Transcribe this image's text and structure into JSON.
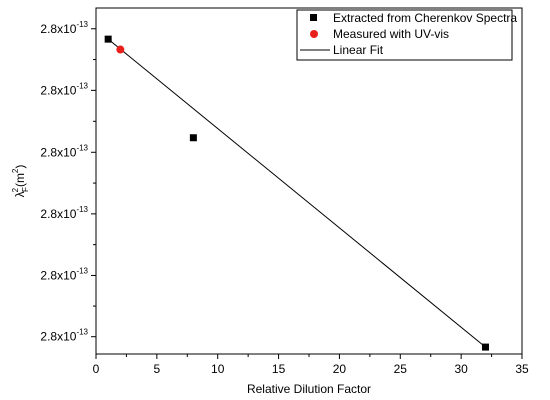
{
  "chart_data": {
    "type": "scatter",
    "xlabel": "Relative Dilution Factor",
    "ylabel": "λ²F(m²)",
    "ylabel_parts": {
      "base": "λ",
      "sup": "2",
      "sub": "F",
      "unit_open": "(m",
      "unit_sup": "2",
      "unit_close": ")"
    },
    "xlim": [
      0,
      35
    ],
    "ylim": [
      0,
      1
    ],
    "x_ticks": [
      0,
      5,
      10,
      15,
      20,
      25,
      30,
      35
    ],
    "y_ticks": [
      {
        "mantissa": "2.8x10",
        "exp": "-13",
        "level": 0.05
      },
      {
        "mantissa": "2.8x10",
        "exp": "-13",
        "level": 0.227
      },
      {
        "mantissa": "2.8x10",
        "exp": "-13",
        "level": 0.405
      },
      {
        "mantissa": "2.8x10",
        "exp": "-13",
        "level": 0.583
      },
      {
        "mantissa": "2.8x10",
        "exp": "-13",
        "level": 0.762
      },
      {
        "mantissa": "2.8x10",
        "exp": "-13",
        "level": 0.94
      }
    ],
    "legend_position": "top-right",
    "series": [
      {
        "name": "Extracted from Cherenkov Spectra",
        "marker": "square",
        "color": "#000000",
        "points": [
          {
            "x": 1,
            "y": 0.91
          },
          {
            "x": 8,
            "y": 0.625
          },
          {
            "x": 32,
            "y": 0.02
          }
        ]
      },
      {
        "name": "Measured with UV-vis",
        "marker": "circle",
        "color": "#e8201c",
        "points": [
          {
            "x": 2,
            "y": 0.88
          }
        ]
      },
      {
        "name": "Linear Fit",
        "marker": "line",
        "color": "#000000",
        "line": [
          {
            "x": 1,
            "y": 0.91
          },
          {
            "x": 32,
            "y": 0.02
          }
        ]
      }
    ]
  }
}
